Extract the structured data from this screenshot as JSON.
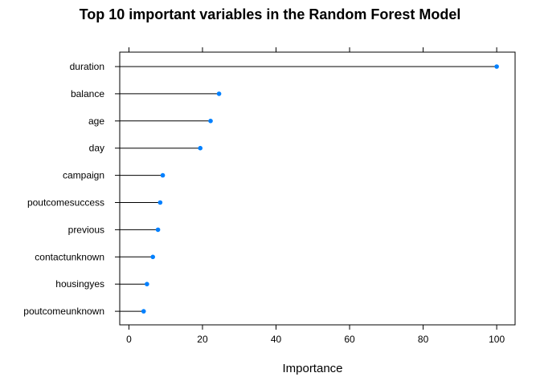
{
  "chart_data": {
    "type": "dotplot",
    "title": "Top 10 important variables in the Random Forest Model",
    "xlabel": "Importance",
    "ylabel": "",
    "xlim": [
      -2.5,
      105
    ],
    "xticks": [
      0,
      20,
      40,
      60,
      80,
      100
    ],
    "grid": false,
    "categories": [
      "duration",
      "balance",
      "age",
      "day",
      "campaign",
      "poutcomesuccess",
      "previous",
      "contactunknown",
      "housingyes",
      "poutcomeunknown"
    ],
    "values": [
      100,
      24.5,
      22.2,
      19.4,
      9.2,
      8.5,
      7.9,
      6.5,
      4.9,
      4.0
    ],
    "marker_color": "#0080ff",
    "line_color": "#000000"
  }
}
